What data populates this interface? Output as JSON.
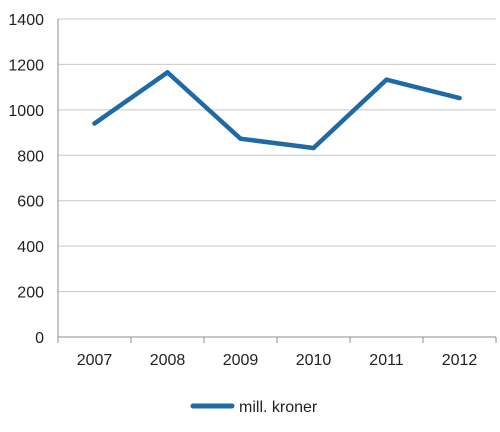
{
  "chart_data": {
    "type": "line",
    "categories": [
      "2007",
      "2008",
      "2009",
      "2010",
      "2011",
      "2012"
    ],
    "series": [
      {
        "name": "mill. kroner",
        "values": [
          940,
          1165,
          873,
          832,
          1133,
          1052
        ]
      }
    ],
    "ylim": [
      0,
      1400
    ],
    "yticks": [
      "0",
      "200",
      "400",
      "600",
      "800",
      "1000",
      "1200",
      "1400"
    ],
    "grid": true,
    "legend_position": "bottom",
    "colors": {
      "series": "#1f6aa5",
      "grid": "#c8c8c8",
      "axis": "#8c8c8c"
    }
  }
}
